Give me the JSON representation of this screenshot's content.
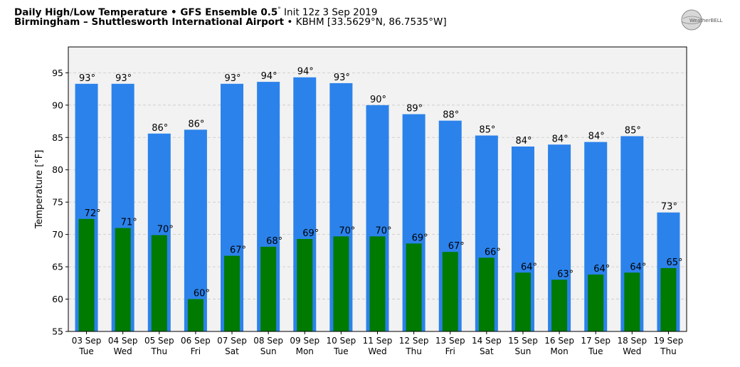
{
  "header": {
    "title_bold": "Daily High/Low Temperature • GFS Ensemble 0.5",
    "title_deg": "°",
    "title_rest": " Init 12z 3 Sep 2019",
    "location_bold": "Birmingham – Shuttlesworth International Airport",
    "location_rest": " • KBHM [33.5629°N, 86.7535°W]"
  },
  "logo": {
    "text": "WeatherBELL",
    "icon": "weatherbell-globe-icon"
  },
  "chart_data": {
    "type": "bar",
    "title": "Daily High/Low Temperature",
    "ylabel": "Temperature [°F]",
    "xlabel": "",
    "ylim": [
      55,
      99
    ],
    "yticks": [
      55,
      60,
      65,
      70,
      75,
      80,
      85,
      90,
      95
    ],
    "grid": true,
    "categories": [
      [
        "03 Sep",
        "Tue"
      ],
      [
        "04 Sep",
        "Wed"
      ],
      [
        "05 Sep",
        "Thu"
      ],
      [
        "06 Sep",
        "Fri"
      ],
      [
        "07 Sep",
        "Sat"
      ],
      [
        "08 Sep",
        "Sun"
      ],
      [
        "09 Sep",
        "Mon"
      ],
      [
        "10 Sep",
        "Tue"
      ],
      [
        "11 Sep",
        "Wed"
      ],
      [
        "12 Sep",
        "Thu"
      ],
      [
        "13 Sep",
        "Fri"
      ],
      [
        "14 Sep",
        "Sat"
      ],
      [
        "15 Sep",
        "Sun"
      ],
      [
        "16 Sep",
        "Mon"
      ],
      [
        "17 Sep",
        "Tue"
      ],
      [
        "18 Sep",
        "Wed"
      ],
      [
        "19 Sep",
        "Thu"
      ]
    ],
    "series": [
      {
        "name": "High",
        "color": "#2b82eb",
        "values": [
          93.3,
          93.3,
          85.6,
          86.2,
          93.3,
          93.6,
          94.3,
          93.4,
          90.0,
          88.6,
          87.6,
          85.3,
          83.6,
          83.9,
          84.3,
          85.2,
          73.4
        ],
        "labels": [
          "93°",
          "93°",
          "86°",
          "86°",
          "93°",
          "94°",
          "94°",
          "93°",
          "90°",
          "89°",
          "88°",
          "85°",
          "84°",
          "84°",
          "84°",
          "85°",
          "73°"
        ]
      },
      {
        "name": "Low",
        "color": "#007a00",
        "values": [
          72.4,
          71.0,
          69.9,
          60.0,
          66.7,
          68.1,
          69.3,
          69.7,
          69.7,
          68.6,
          67.3,
          66.4,
          64.1,
          63.0,
          63.8,
          64.1,
          64.8
        ],
        "labels": [
          "72°",
          "71°",
          "70°",
          "60°",
          "67°",
          "68°",
          "69°",
          "70°",
          "70°",
          "69°",
          "67°",
          "66°",
          "64°",
          "63°",
          "64°",
          "64°",
          "65°"
        ]
      }
    ]
  }
}
